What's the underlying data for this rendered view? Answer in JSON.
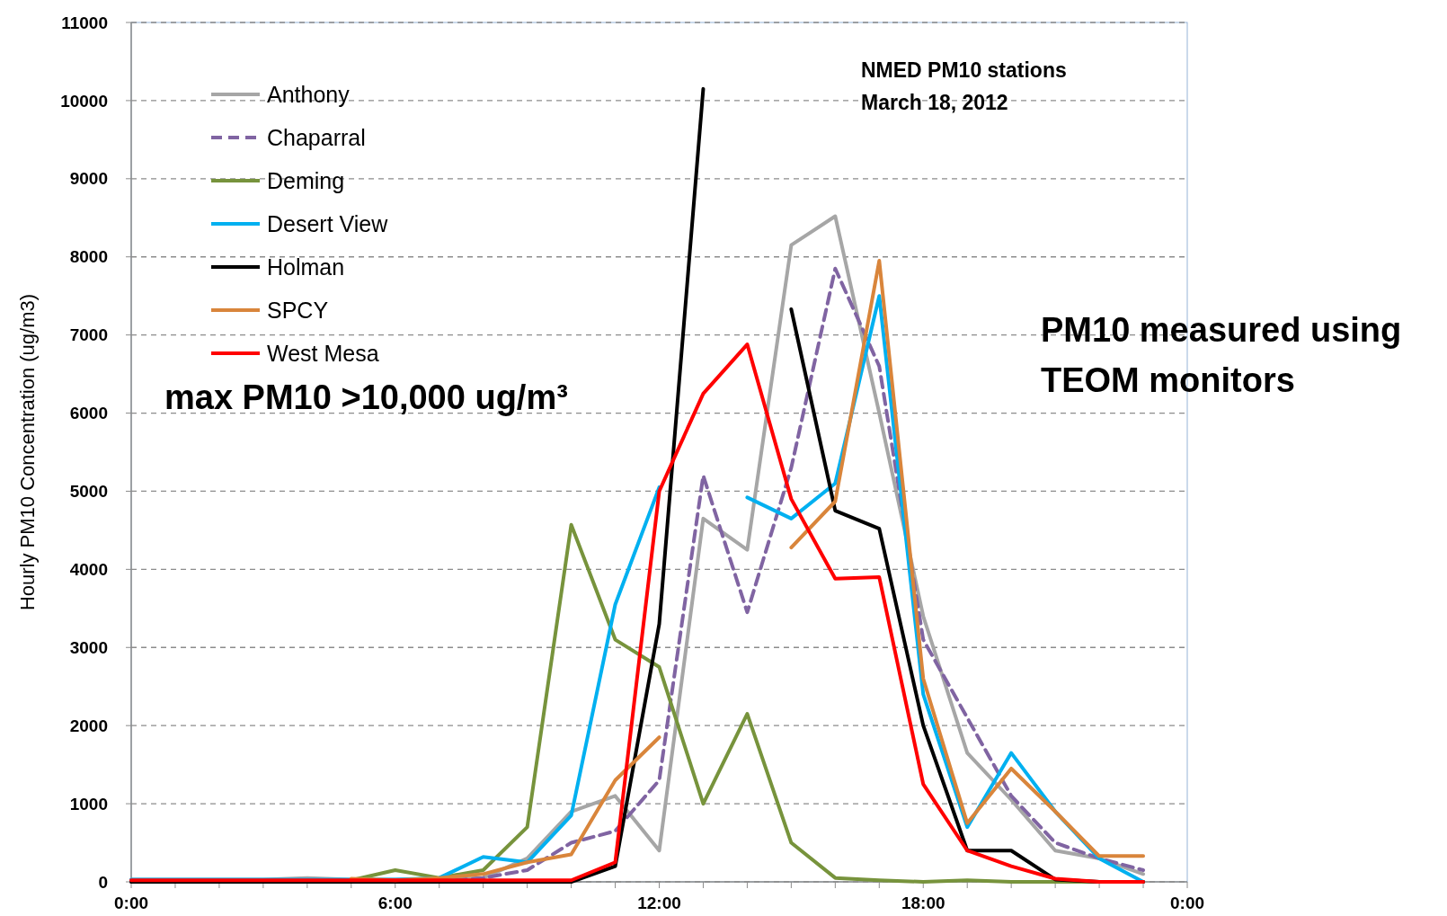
{
  "chart_data": {
    "type": "line",
    "title": "NMED PM10 stations",
    "subtitle": "March 18, 2012",
    "ylabel": "Hourly PM10 Concentration (ug/m3)",
    "annotations": [
      "max PM10 >10,000 ug/m³",
      "PM10 measured using TEOM monitors"
    ],
    "x": [
      0,
      1,
      2,
      3,
      4,
      5,
      6,
      7,
      8,
      9,
      10,
      11,
      12,
      13,
      14,
      15,
      16,
      17,
      18,
      19,
      20,
      21,
      22,
      23
    ],
    "xlim": [
      0,
      24
    ],
    "xticks": [
      {
        "value": 0,
        "label": "0:00"
      },
      {
        "value": 1,
        "label": null
      },
      {
        "value": 2,
        "label": null
      },
      {
        "value": 3,
        "label": null
      },
      {
        "value": 4,
        "label": null
      },
      {
        "value": 5,
        "label": null
      },
      {
        "value": 6,
        "label": "6:00"
      },
      {
        "value": 7,
        "label": null
      },
      {
        "value": 8,
        "label": null
      },
      {
        "value": 9,
        "label": null
      },
      {
        "value": 10,
        "label": null
      },
      {
        "value": 11,
        "label": null
      },
      {
        "value": 12,
        "label": "12:00"
      },
      {
        "value": 13,
        "label": null
      },
      {
        "value": 14,
        "label": null
      },
      {
        "value": 15,
        "label": null
      },
      {
        "value": 16,
        "label": null
      },
      {
        "value": 17,
        "label": null
      },
      {
        "value": 18,
        "label": "18:00"
      },
      {
        "value": 19,
        "label": null
      },
      {
        "value": 20,
        "label": null
      },
      {
        "value": 21,
        "label": null
      },
      {
        "value": 22,
        "label": null
      },
      {
        "value": 23,
        "label": null
      },
      {
        "value": 24,
        "label": "0:00"
      }
    ],
    "ylim": [
      0,
      11000
    ],
    "yticks": [
      0,
      1000,
      2000,
      3000,
      4000,
      5000,
      6000,
      7000,
      8000,
      9000,
      10000,
      11000
    ],
    "grid": "y",
    "legend": "top left",
    "marker": "none",
    "line_style": "solid",
    "series": [
      {
        "name": "Anthony",
        "color": "#a6a6a6",
        "values": [
          30,
          30,
          30,
          30,
          50,
          30,
          30,
          30,
          50,
          300,
          900,
          1100,
          400,
          4650,
          4250,
          8150,
          8520,
          6000,
          3400,
          1650,
          1050,
          400,
          300,
          100
        ]
      },
      {
        "name": "Chaparral",
        "color": "#8064a2",
        "line_style": "dashed",
        "values": [
          0,
          0,
          0,
          0,
          0,
          0,
          0,
          0,
          50,
          150,
          500,
          650,
          1300,
          5200,
          3450,
          5300,
          7850,
          6600,
          3100,
          2100,
          1100,
          500,
          300,
          150
        ]
      },
      {
        "name": "Deming",
        "color": "#77933c",
        "values": [
          null,
          null,
          null,
          null,
          null,
          20,
          150,
          50,
          150,
          700,
          4570,
          3100,
          2750,
          1000,
          2150,
          500,
          50,
          20,
          0,
          20,
          0,
          0,
          0,
          0
        ]
      },
      {
        "name": "Desert View",
        "color": "#00b0f0",
        "values": [
          30,
          30,
          30,
          30,
          30,
          30,
          30,
          50,
          320,
          250,
          850,
          3550,
          5050,
          null,
          4920,
          4650,
          5100,
          7500,
          2400,
          700,
          1650,
          900,
          300,
          0
        ]
      },
      {
        "name": "Holman",
        "color": "#000000",
        "values": [
          0,
          0,
          0,
          0,
          0,
          0,
          0,
          0,
          0,
          0,
          0,
          200,
          3300,
          10150,
          null,
          7330,
          4750,
          4520,
          2000,
          400,
          400,
          30,
          0,
          0
        ]
      },
      {
        "name": "SPCY",
        "color": "#d9853b",
        "values": [
          null,
          null,
          null,
          null,
          null,
          40,
          20,
          50,
          100,
          250,
          350,
          1300,
          1850,
          null,
          null,
          4280,
          4870,
          7950,
          2600,
          750,
          1450,
          900,
          330,
          330
        ]
      },
      {
        "name": "West Mesa",
        "color": "#ff0000",
        "values": [
          20,
          20,
          20,
          20,
          20,
          20,
          20,
          20,
          20,
          20,
          20,
          250,
          5000,
          6250,
          6880,
          4900,
          3880,
          3900,
          1250,
          400,
          200,
          40,
          0,
          0
        ]
      }
    ]
  }
}
